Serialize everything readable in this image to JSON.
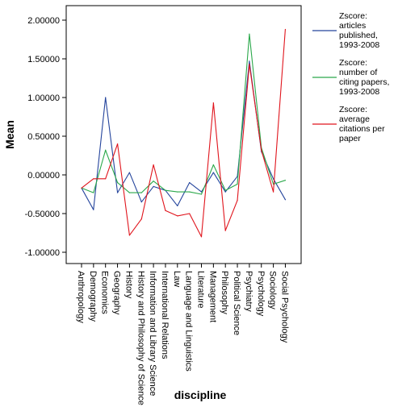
{
  "chart_data": {
    "type": "line",
    "xlabel": "discipline",
    "ylabel": "Mean",
    "ylim": [
      -1.2,
      2.15
    ],
    "yticks": [
      2.0,
      1.5,
      1.0,
      0.5,
      0.0,
      -0.5,
      -1.0
    ],
    "ytick_labels": [
      "2.00000",
      "1.50000",
      "1.00000",
      "0.50000",
      "0.00000",
      "-0.50000",
      "-1.00000"
    ],
    "grid": false,
    "legend_position": "right",
    "categories": [
      "Anthropology",
      "Demography",
      "Economics",
      "Geography",
      "History",
      "History and Philosophy of Science",
      "Information and Library Science",
      "International Relations",
      "Law",
      "Language and Linguistics",
      "Literature",
      "Management",
      "Philosophy",
      "Political Science",
      "Psychiatry",
      "Psychology",
      "Sociology",
      "Social Psychology"
    ],
    "series": [
      {
        "name": "Zscore: articles published, 1993-2008",
        "color": "#24449c",
        "values": [
          -0.17,
          -0.45,
          1.0,
          -0.23,
          0.03,
          -0.35,
          -0.15,
          -0.2,
          -0.4,
          -0.1,
          -0.22,
          0.03,
          -0.22,
          -0.02,
          1.47,
          0.3,
          -0.05,
          -0.32
        ]
      },
      {
        "name": "Zscore: number of citing papers, 1993-2008",
        "color": "#2aa84a",
        "values": [
          -0.17,
          -0.23,
          0.32,
          -0.1,
          -0.23,
          -0.23,
          -0.08,
          -0.2,
          -0.22,
          -0.22,
          -0.25,
          0.13,
          -0.2,
          -0.12,
          1.82,
          0.35,
          -0.12,
          -0.07
        ]
      },
      {
        "name": "Zscore: average citations per paper",
        "color": "#e0141c",
        "values": [
          -0.17,
          -0.05,
          -0.05,
          0.4,
          -0.78,
          -0.57,
          0.13,
          -0.46,
          -0.53,
          -0.5,
          -0.8,
          0.93,
          -0.72,
          -0.33,
          1.43,
          0.32,
          -0.22,
          1.88
        ]
      }
    ]
  }
}
